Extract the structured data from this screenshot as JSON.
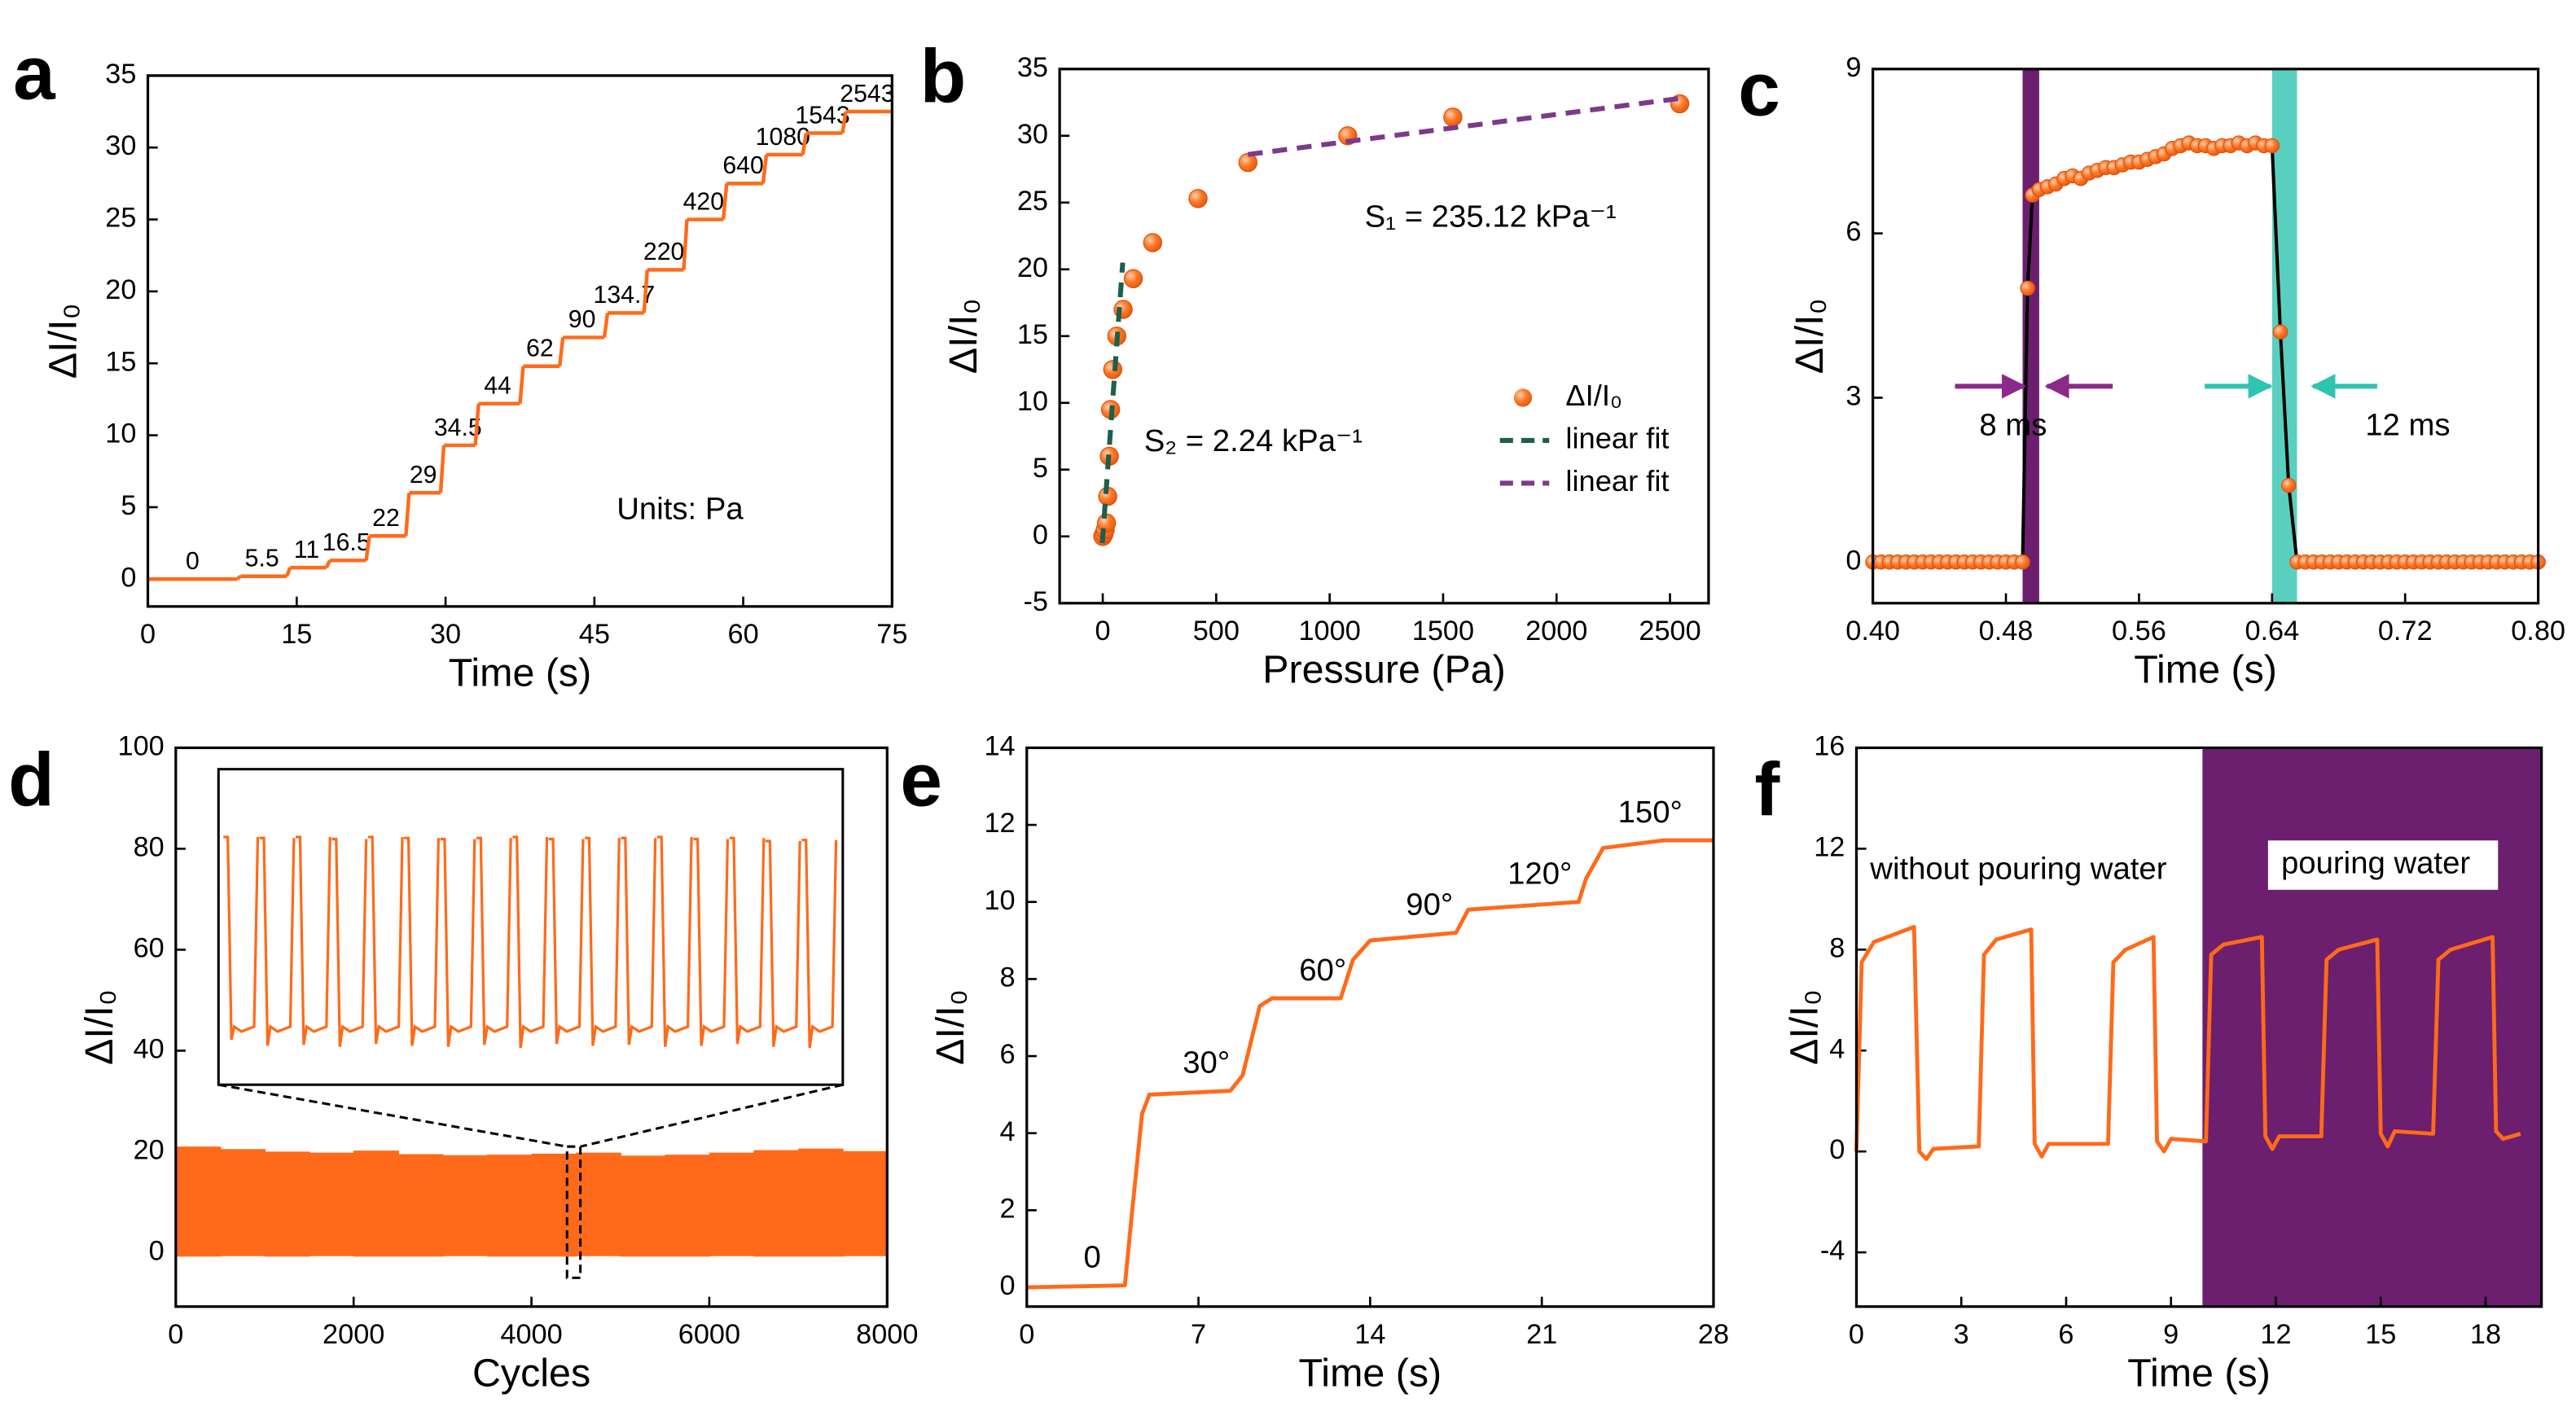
{
  "chart_data": [
    {
      "type": "step",
      "panel": "a",
      "xlabel": "Time (s)",
      "ylabel": "ΔI/I₀",
      "color": "#ff6a1a",
      "xlim": [
        0,
        75
      ],
      "ylim": [
        -1.9,
        35
      ],
      "xticks": [
        0,
        15,
        30,
        45,
        60,
        75
      ],
      "yticks": [
        0,
        5,
        10,
        15,
        20,
        25,
        30,
        35
      ],
      "x": [
        0,
        9,
        14,
        18,
        22,
        26,
        29.5,
        33,
        37.5,
        41.5,
        46,
        50,
        54,
        58,
        62,
        66,
        70
      ],
      "values": [
        0,
        0.2,
        0.8,
        1.3,
        3,
        6,
        9.3,
        12.2,
        14.8,
        16.8,
        18.5,
        21.5,
        25,
        27.5,
        29.5,
        31,
        32.5
      ],
      "step_labels": [
        0,
        5.5,
        11,
        16.5,
        22,
        29,
        34.5,
        44,
        62,
        90,
        134.7,
        220,
        420,
        640,
        1080,
        1543,
        2543
      ],
      "annotations": [
        "Units: Pa"
      ]
    },
    {
      "type": "scatter",
      "panel": "b",
      "xlabel": "Pressure (Pa)",
      "ylabel": "ΔI/I₀",
      "legend": "right",
      "xlim": [
        -190,
        2670
      ],
      "ylim": [
        -5,
        35
      ],
      "xticks": [
        0,
        500,
        1000,
        1500,
        2000,
        2500
      ],
      "yticks": [
        -5,
        0,
        5,
        10,
        15,
        20,
        25,
        30,
        35
      ],
      "series": [
        {
          "name": "ΔI/I₀",
          "color": "#ff6a1a",
          "marker": true,
          "x": [
            0,
            5.5,
            11,
            16.5,
            22,
            29,
            34.5,
            44,
            62,
            90,
            134.7,
            220,
            420,
            640,
            1080,
            1543,
            2543
          ],
          "values": [
            0,
            0.2,
            0.5,
            1,
            3,
            6,
            9.5,
            12.5,
            15,
            17,
            19.3,
            22,
            25.3,
            28,
            30,
            31.4,
            32.4
          ]
        },
        {
          "name": "linear fit",
          "color": "#1e5e4e",
          "dash": true,
          "x": [
            -2,
            88
          ],
          "values": [
            -0.5,
            20.5
          ]
        },
        {
          "name": "linear fit",
          "color": "#7b3a8a",
          "dash": true,
          "x": [
            640,
            2543
          ],
          "values": [
            28.6,
            32.8
          ]
        }
      ],
      "annotations": [
        "S₁ = 235.12 kPa⁻¹",
        "S₂ = 2.24 kPa⁻¹"
      ]
    },
    {
      "type": "scatter",
      "panel": "c",
      "xlabel": "Time (s)",
      "ylabel": "ΔI/I₀",
      "xlim": [
        0.4,
        0.8
      ],
      "ylim": [
        -0.75,
        9
      ],
      "xticks": [
        {
          "value": 0.4,
          "label": "0.40"
        },
        0.48,
        0.56,
        0.64,
        0.72,
        {
          "value": 0.8,
          "label": "0.80"
        }
      ],
      "yticks": [
        0,
        3,
        6,
        9
      ],
      "bands": [
        {
          "range": [
            0.49,
            0.5
          ],
          "color": "#6b1f6e"
        },
        {
          "range": [
            0.64,
            0.655
          ],
          "color": "#3cc8b4"
        }
      ],
      "series": [
        {
          "color": "#ff6a1a",
          "marker": true,
          "line_color": "#000000",
          "x": [
            0.4,
            0.405,
            0.41,
            0.415,
            0.42,
            0.425,
            0.43,
            0.435,
            0.44,
            0.445,
            0.45,
            0.455,
            0.46,
            0.465,
            0.47,
            0.475,
            0.48,
            0.485,
            0.49,
            0.493,
            0.496,
            0.5,
            0.505,
            0.51,
            0.515,
            0.52,
            0.525,
            0.53,
            0.535,
            0.54,
            0.545,
            0.55,
            0.555,
            0.56,
            0.565,
            0.57,
            0.575,
            0.58,
            0.585,
            0.59,
            0.595,
            0.6,
            0.605,
            0.61,
            0.615,
            0.62,
            0.625,
            0.63,
            0.635,
            0.64,
            0.645,
            0.65,
            0.655,
            0.66,
            0.665,
            0.67,
            0.675,
            0.68,
            0.685,
            0.69,
            0.695,
            0.7,
            0.705,
            0.71,
            0.715,
            0.72,
            0.725,
            0.73,
            0.735,
            0.74,
            0.745,
            0.75,
            0.755,
            0.76,
            0.765,
            0.77,
            0.775,
            0.78,
            0.785,
            0.79,
            0.795,
            0.8
          ],
          "values": [
            0,
            0,
            0,
            0,
            0,
            0,
            0,
            0,
            0,
            0,
            0,
            0,
            0,
            0,
            0,
            0,
            0,
            0,
            0,
            5.0,
            6.7,
            6.8,
            6.85,
            6.9,
            7.0,
            7.05,
            7.0,
            7.1,
            7.15,
            7.2,
            7.2,
            7.25,
            7.3,
            7.3,
            7.35,
            7.4,
            7.45,
            7.55,
            7.6,
            7.65,
            7.6,
            7.6,
            7.55,
            7.6,
            7.6,
            7.65,
            7.6,
            7.65,
            7.6,
            7.6,
            4.2,
            1.4,
            0,
            0,
            0,
            0,
            0,
            0,
            0,
            0,
            0,
            0,
            0,
            0,
            0,
            0,
            0,
            0,
            0,
            0,
            0,
            0,
            0,
            0,
            0,
            0,
            0,
            0,
            0,
            0,
            0,
            0
          ]
        }
      ],
      "annotations": [
        "8 ms",
        "12 ms"
      ]
    },
    {
      "type": "band",
      "panel": "d",
      "xlabel": "Cycles",
      "ylabel": "ΔI/I₀",
      "color": "#ff6a1a",
      "xlim": [
        0,
        8000
      ],
      "ylim": [
        -10.7,
        100
      ],
      "xticks": [
        0,
        2000,
        4000,
        6000,
        8000
      ],
      "yticks": [
        0,
        20,
        40,
        60,
        80,
        100
      ],
      "x": [
        0,
        500,
        1000,
        1500,
        2000,
        2500,
        3000,
        3500,
        4000,
        4500,
        5000,
        5500,
        6000,
        6500,
        7000,
        7500
      ],
      "upper": [
        21,
        20.5,
        20,
        19.8,
        20.2,
        19.5,
        19.3,
        19.4,
        19.6,
        19.8,
        19.2,
        19.4,
        19.8,
        20.3,
        20.6,
        20.1
      ],
      "lower": [
        -0.8,
        -0.7,
        -0.8,
        -0.7,
        -0.8,
        -0.8,
        -0.7,
        -0.8,
        -0.8,
        -0.7,
        -0.8,
        -0.8,
        -0.7,
        -0.8,
        -0.8,
        -0.7
      ],
      "zoom": {
        "x": [
          4400,
          4550
        ],
        "y": [
          -5,
          21
        ]
      },
      "inset": {
        "peaks": [
          20.3,
          20.2,
          20.3,
          20.1,
          20.3,
          20.2,
          20.1,
          20.2,
          20.3,
          20.1,
          20.2,
          20.2,
          20.3,
          20.1,
          20.2,
          19.9,
          20.0
        ],
        "troughs": [
          0.2,
          -0.4,
          -0.3,
          -0.5,
          -0.2,
          -0.4,
          -0.5,
          -0.3,
          -0.6,
          -0.2,
          -0.4,
          -0.3,
          -0.5,
          -0.4,
          -0.2,
          -0.5,
          -0.6
        ],
        "baseline": 1.5
      }
    },
    {
      "type": "line",
      "panel": "e",
      "xlabel": "Time (s)",
      "ylabel": "ΔI/I₀",
      "color": "#ff6a1a",
      "xlim": [
        0,
        28
      ],
      "ylim": [
        -0.5,
        14
      ],
      "xticks": [
        0,
        7,
        14,
        21,
        28
      ],
      "yticks": [
        0,
        2,
        4,
        6,
        8,
        10,
        12,
        14
      ],
      "x": [
        0,
        4,
        4.3,
        4.7,
        5,
        8.3,
        8.8,
        9.5,
        10,
        12.8,
        13.3,
        14,
        17.5,
        18,
        22.5,
        22.8,
        23.5,
        26,
        28
      ],
      "values": [
        0,
        0.05,
        2,
        4.5,
        5,
        5.1,
        5.5,
        7.3,
        7.5,
        7.5,
        8.5,
        9,
        9.2,
        9.8,
        10,
        10.6,
        11.4,
        11.6,
        11.6
      ],
      "step_labels": [
        "0",
        "30°",
        "60°",
        "90°",
        "120°",
        "150°"
      ]
    },
    {
      "type": "line",
      "panel": "f",
      "xlabel": "Time (s)",
      "ylabel": "ΔI/I₀",
      "color": "#ff6a1a",
      "xlim": [
        0,
        19.6
      ],
      "ylim": [
        -6.15,
        16
      ],
      "xticks": [
        0,
        3,
        6,
        9,
        12,
        15,
        18
      ],
      "yticks": [
        -4,
        0,
        4,
        8,
        12,
        16
      ],
      "shade": {
        "range": [
          9.9,
          19.6
        ],
        "color": "#6b1f6e"
      },
      "x": [
        0,
        0.15,
        0.5,
        1.65,
        1.8,
        2.0,
        2.2,
        3.5,
        3.65,
        4.0,
        5.0,
        5.1,
        5.3,
        5.5,
        7.2,
        7.35,
        7.7,
        8.5,
        8.6,
        8.8,
        9.0,
        10.0,
        10.15,
        10.5,
        11.6,
        11.7,
        11.9,
        12.1,
        13.3,
        13.45,
        13.8,
        14.9,
        15.0,
        15.2,
        15.4,
        16.5,
        16.65,
        17.0,
        18.2,
        18.3,
        18.5,
        19.0
      ],
      "values": [
        0,
        7.5,
        8.3,
        8.9,
        0,
        -0.3,
        0.1,
        0.2,
        7.8,
        8.4,
        8.8,
        0.3,
        -0.2,
        0.3,
        0.3,
        7.5,
        8.0,
        8.5,
        0.4,
        0,
        0.5,
        0.4,
        7.8,
        8.2,
        8.5,
        0.6,
        0.1,
        0.6,
        0.6,
        7.6,
        8.0,
        8.4,
        0.7,
        0.2,
        0.8,
        0.7,
        7.6,
        8.0,
        8.5,
        0.8,
        0.5,
        0.7
      ],
      "annotations": [
        "without pouring water",
        "pouring water"
      ]
    }
  ]
}
